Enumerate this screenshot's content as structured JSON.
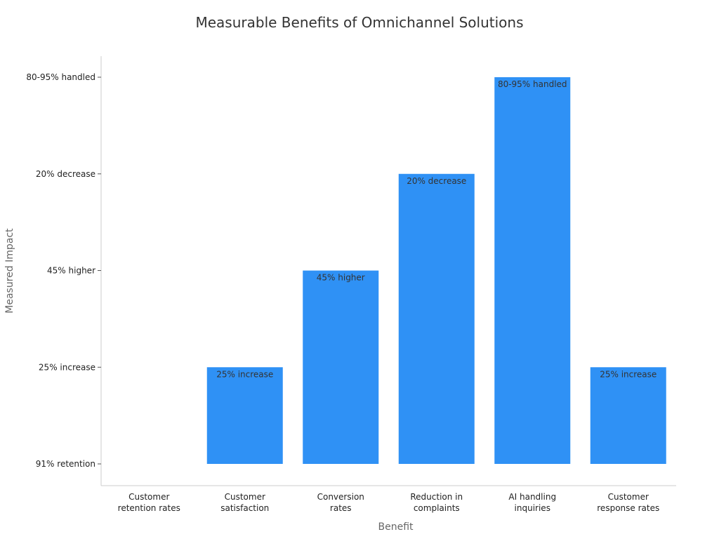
{
  "chart_data": {
    "type": "bar",
    "title": "Measurable Benefits of Omnichannel Solutions",
    "xlabel": "Benefit",
    "ylabel": "Measured Impact",
    "y_categories": [
      "91% retention",
      "25% increase",
      "45% higher",
      "20% decrease",
      "80-95% handled"
    ],
    "categories": [
      [
        "Customer",
        "retention rates"
      ],
      [
        "Customer",
        "satisfaction"
      ],
      [
        "Conversion",
        "rates"
      ],
      [
        "Reduction in",
        "complaints"
      ],
      [
        "AI handling",
        "inquiries"
      ],
      [
        "Customer",
        "response rates"
      ]
    ],
    "values": [
      "91% retention",
      "25% increase",
      "45% higher",
      "20% decrease",
      "80-95% handled",
      "25% increase"
    ],
    "bar_labels": [
      "",
      "25% increase",
      "45% higher",
      "20% decrease",
      "80-95% handled",
      "25% increase"
    ],
    "bar_color": "#2f91f5",
    "grid": false
  }
}
